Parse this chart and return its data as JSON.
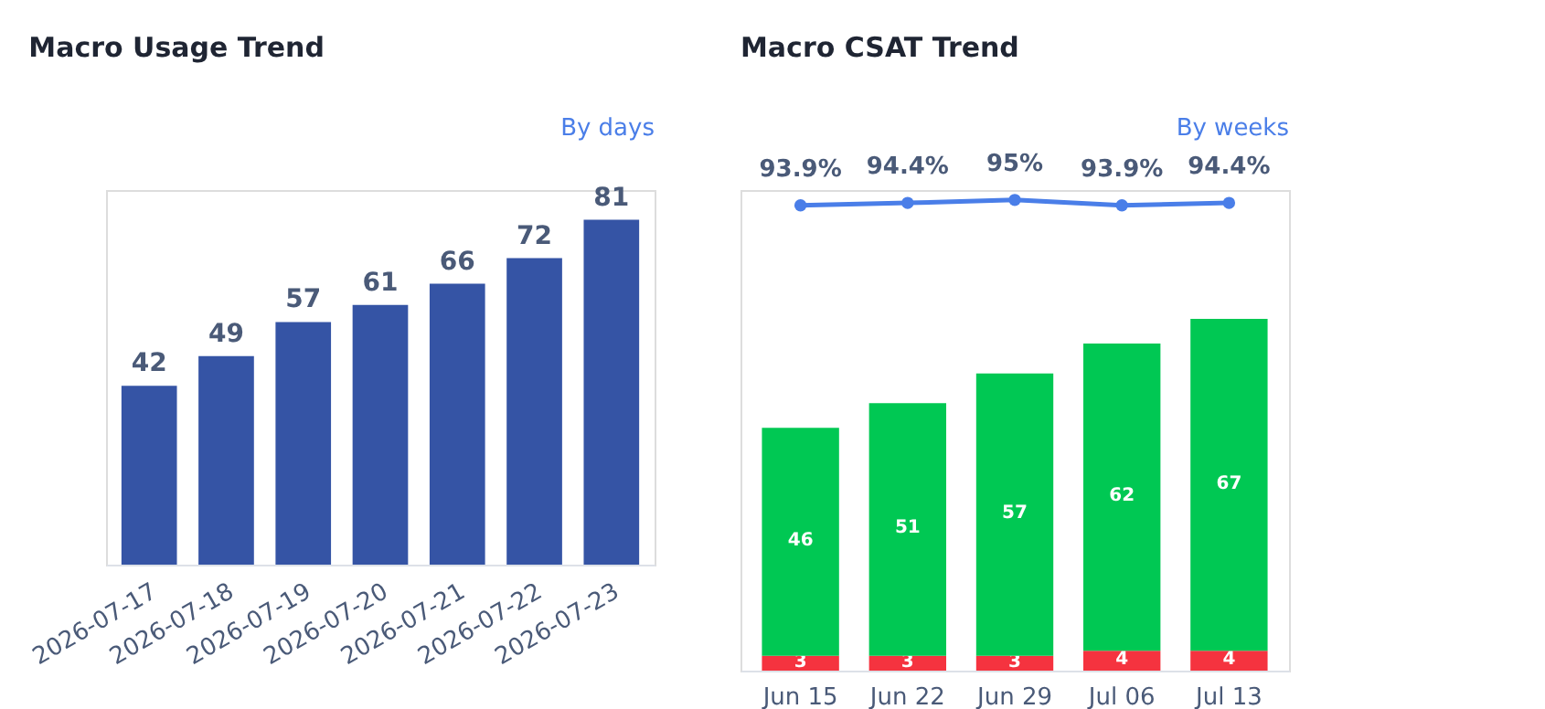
{
  "chart_data": [
    {
      "type": "bar",
      "title": "Macro Usage Trend",
      "annotations": [
        "By days"
      ],
      "categories": [
        "2026-07-17",
        "2026-07-18",
        "2026-07-19",
        "2026-07-20",
        "2026-07-21",
        "2026-07-22",
        "2026-07-23"
      ],
      "series": [
        {
          "color": "#3554a5",
          "values": [
            42,
            49,
            57,
            61,
            66,
            72,
            81
          ]
        }
      ],
      "ylim": [
        0,
        88
      ],
      "data_labels": true,
      "tick_labels": "x"
    },
    {
      "type": "bar",
      "title": "Macro CSAT Trend",
      "annotations": [
        "By weeks"
      ],
      "categories": [
        "Jun 15",
        "Jun 22",
        "Jun 29",
        "Jul 06",
        "Jul 13"
      ],
      "stacked": true,
      "series": [
        {
          "color": "#f5333f",
          "values": [
            3,
            3,
            3,
            4,
            4
          ]
        },
        {
          "color": "#00c853",
          "values": [
            46,
            51,
            57,
            62,
            67
          ]
        },
        {
          "type": "line",
          "color": "#4a7ee8",
          "marker": "circle",
          "values": [
            93.9,
            94.4,
            95,
            93.9,
            94.4
          ],
          "value_labels": [
            "93.9%",
            "94.4%",
            "95%",
            "93.9%",
            "94.4%"
          ]
        }
      ],
      "ylim": [
        0,
        97
      ],
      "data_labels": true,
      "tick_labels": "x"
    }
  ]
}
